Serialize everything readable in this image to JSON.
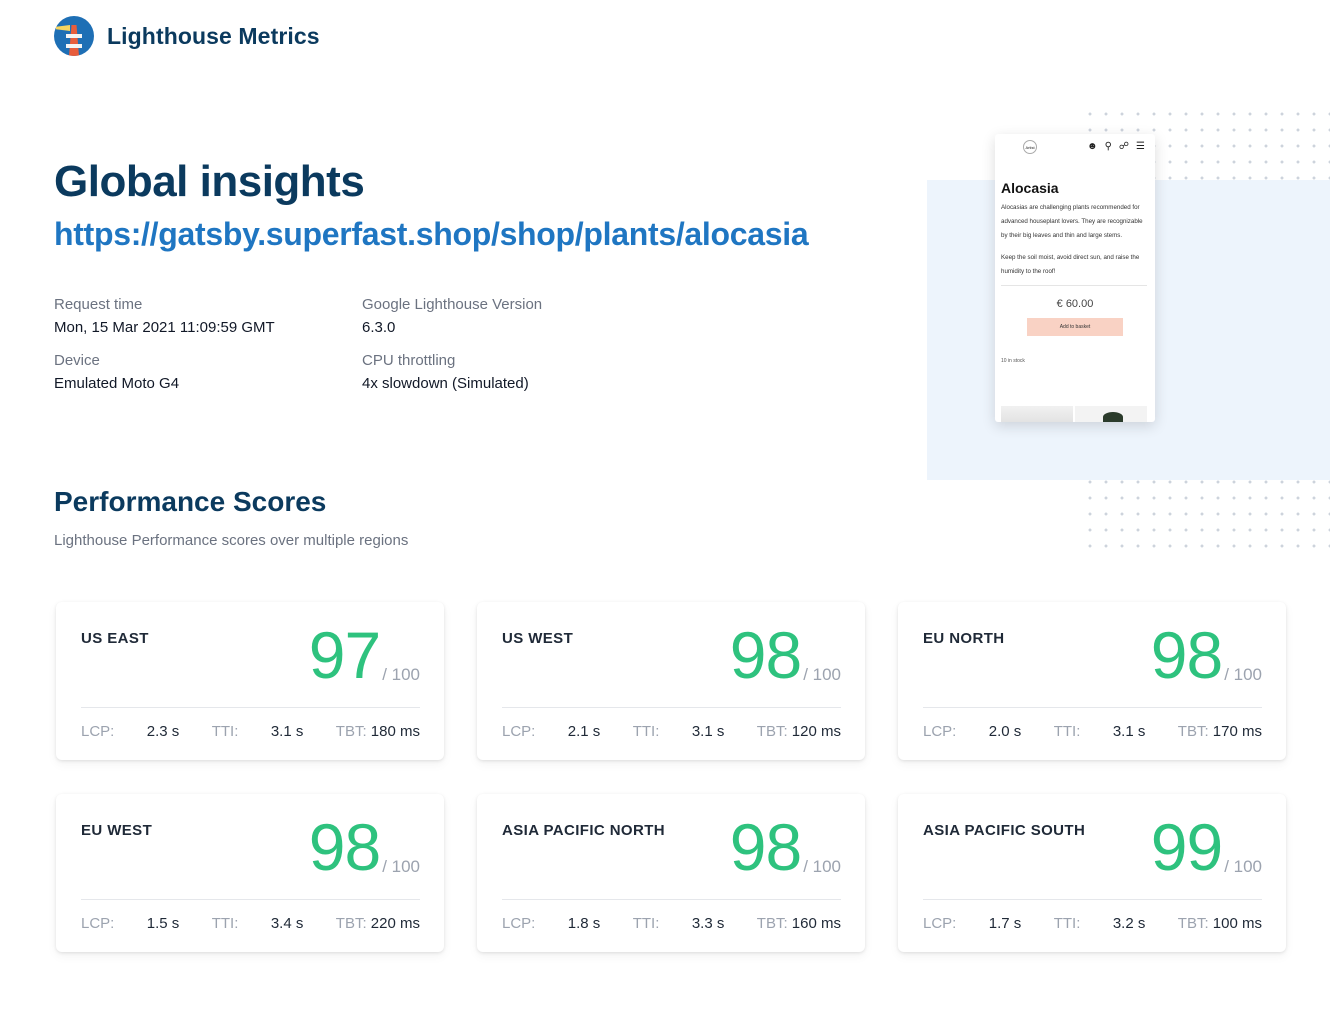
{
  "header": {
    "brand": "Lighthouse Metrics"
  },
  "page": {
    "title": "Global insights",
    "url": "https://gatsby.superfast.shop/shop/plants/alocasia"
  },
  "meta": [
    {
      "label": "Request time",
      "value": "Mon, 15 Mar 2021 11:09:59 GMT"
    },
    {
      "label": "Google Lighthouse Version",
      "value": "6.3.0"
    },
    {
      "label": "Device",
      "value": "Emulated Moto G4"
    },
    {
      "label": "CPU throttling",
      "value": "4x slowdown (Simulated)"
    }
  ],
  "preview": {
    "logo_text": "Artist",
    "title": "Alocasia",
    "desc1": "Alocasias are challenging plants recommended for advanced houseplant lovers. They are recognizable by their big leaves and thin and large stems.",
    "desc2": "Keep the soil moist, avoid direct sun, and raise the humidity to the roof!",
    "price": "€ 60.00",
    "button": "Add to basket",
    "stock": "10 in stock"
  },
  "performance": {
    "title": "Performance Scores",
    "subtitle": "Lighthouse Performance scores over multiple regions",
    "out_of": "/ 100",
    "labels": {
      "lcp": "LCP:",
      "tti": "TTI:",
      "tbt": "TBT:"
    },
    "regions": [
      {
        "name": "US EAST",
        "score": "97",
        "lcp": "2.3 s",
        "tti": "3.1 s",
        "tbt": "180 ms"
      },
      {
        "name": "US WEST",
        "score": "98",
        "lcp": "2.1 s",
        "tti": "3.1 s",
        "tbt": "120 ms"
      },
      {
        "name": "EU NORTH",
        "score": "98",
        "lcp": "2.0 s",
        "tti": "3.1 s",
        "tbt": "170 ms"
      },
      {
        "name": "EU WEST",
        "score": "98",
        "lcp": "1.5 s",
        "tti": "3.4 s",
        "tbt": "220 ms"
      },
      {
        "name": "ASIA PACIFIC NORTH",
        "score": "98",
        "lcp": "1.8 s",
        "tti": "3.3 s",
        "tbt": "160 ms"
      },
      {
        "name": "ASIA PACIFIC SOUTH",
        "score": "99",
        "lcp": "1.7 s",
        "tti": "3.2 s",
        "tbt": "100 ms"
      }
    ]
  },
  "colors": {
    "brand": "#0b3a5e",
    "link": "#1f76c2",
    "score": "#2ec27e"
  }
}
